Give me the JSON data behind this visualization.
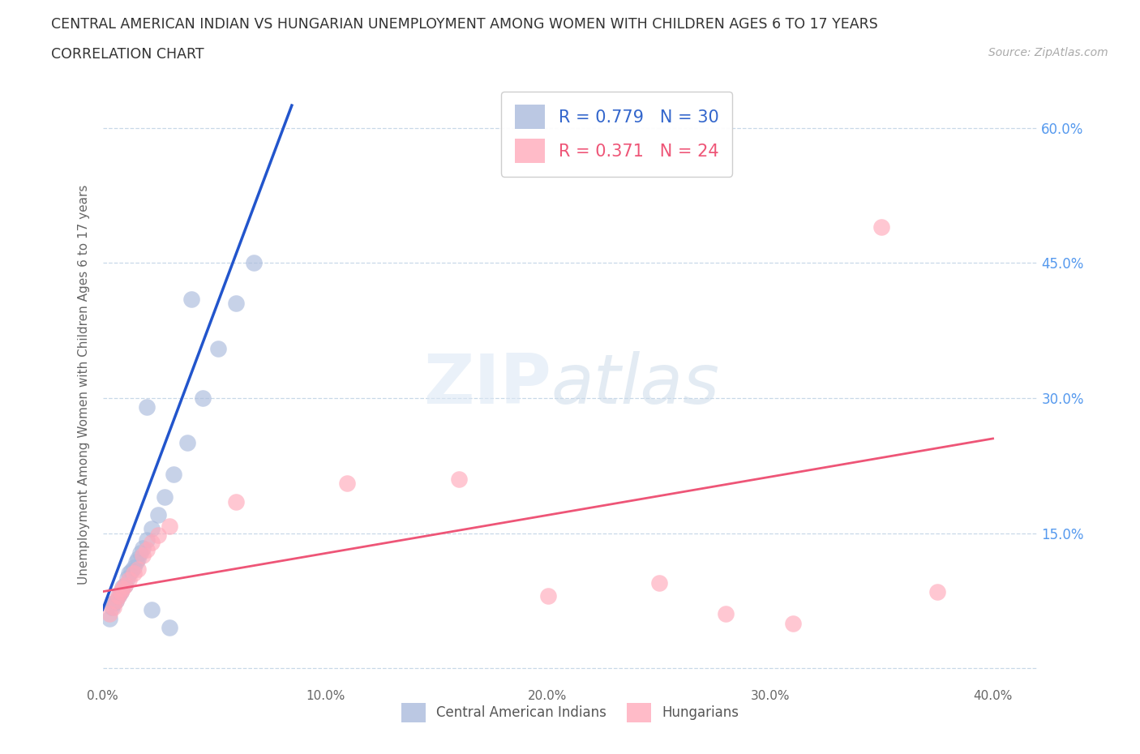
{
  "title_line1": "CENTRAL AMERICAN INDIAN VS HUNGARIAN UNEMPLOYMENT AMONG WOMEN WITH CHILDREN AGES 6 TO 17 YEARS",
  "title_line2": "CORRELATION CHART",
  "source_text": "Source: ZipAtlas.com",
  "ylabel": "Unemployment Among Women with Children Ages 6 to 17 years",
  "xlim": [
    0.0,
    0.42
  ],
  "ylim": [
    -0.02,
    0.65
  ],
  "grid_color": "#c8d8e8",
  "background_color": "#ffffff",
  "watermark_zip": "ZIP",
  "watermark_atlas": "atlas",
  "legend_r1_val": "0.779",
  "legend_n1_val": "30",
  "legend_r2_val": "0.371",
  "legend_n2_val": "24",
  "blue_scatter_color": "#aabbdd",
  "pink_scatter_color": "#ffaabb",
  "line_blue": "#2255cc",
  "line_pink": "#ee5577",
  "text_blue": "#3366cc",
  "text_pink": "#ee5577",
  "right_tick_color": "#5599ee",
  "label1": "Central American Indians",
  "label2": "Hungarians",
  "blue_points": [
    [
      0.003,
      0.055
    ],
    [
      0.004,
      0.068
    ],
    [
      0.005,
      0.072
    ],
    [
      0.006,
      0.075
    ],
    [
      0.007,
      0.08
    ],
    [
      0.008,
      0.085
    ],
    [
      0.009,
      0.09
    ],
    [
      0.01,
      0.092
    ],
    [
      0.011,
      0.1
    ],
    [
      0.012,
      0.105
    ],
    [
      0.013,
      0.108
    ],
    [
      0.014,
      0.112
    ],
    [
      0.015,
      0.118
    ],
    [
      0.016,
      0.122
    ],
    [
      0.017,
      0.128
    ],
    [
      0.018,
      0.133
    ],
    [
      0.02,
      0.142
    ],
    [
      0.022,
      0.155
    ],
    [
      0.025,
      0.17
    ],
    [
      0.028,
      0.19
    ],
    [
      0.032,
      0.215
    ],
    [
      0.038,
      0.25
    ],
    [
      0.045,
      0.3
    ],
    [
      0.052,
      0.355
    ],
    [
      0.06,
      0.405
    ],
    [
      0.068,
      0.45
    ],
    [
      0.04,
      0.41
    ],
    [
      0.02,
      0.29
    ],
    [
      0.022,
      0.065
    ],
    [
      0.03,
      0.045
    ]
  ],
  "pink_points": [
    [
      0.003,
      0.06
    ],
    [
      0.005,
      0.068
    ],
    [
      0.006,
      0.075
    ],
    [
      0.007,
      0.08
    ],
    [
      0.008,
      0.085
    ],
    [
      0.009,
      0.088
    ],
    [
      0.01,
      0.092
    ],
    [
      0.012,
      0.098
    ],
    [
      0.014,
      0.105
    ],
    [
      0.016,
      0.11
    ],
    [
      0.018,
      0.125
    ],
    [
      0.02,
      0.132
    ],
    [
      0.022,
      0.14
    ],
    [
      0.025,
      0.148
    ],
    [
      0.03,
      0.158
    ],
    [
      0.06,
      0.185
    ],
    [
      0.11,
      0.205
    ],
    [
      0.16,
      0.21
    ],
    [
      0.2,
      0.08
    ],
    [
      0.25,
      0.095
    ],
    [
      0.28,
      0.06
    ],
    [
      0.31,
      0.05
    ],
    [
      0.375,
      0.085
    ],
    [
      0.35,
      0.49
    ]
  ]
}
